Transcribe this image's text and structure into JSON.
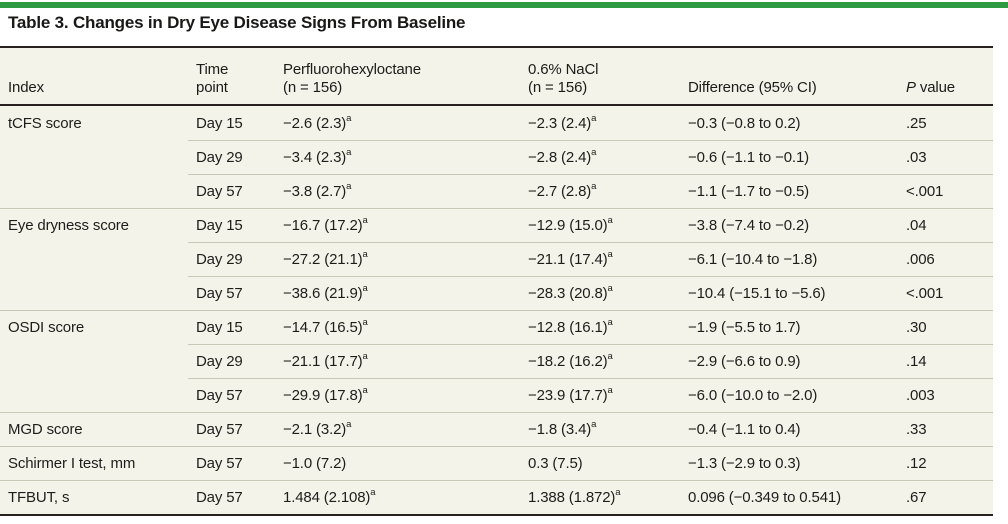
{
  "title": "Table 3. Changes in Dry Eye Disease Signs From Baseline",
  "colors": {
    "accent_green": "#2e9b43",
    "table_background": "#f4f3e9",
    "rule_dark": "#272220",
    "rule_light": "#c9c7b8",
    "text": "#1e1d1b"
  },
  "table": {
    "headers": {
      "index": "Index",
      "time_point": "Time\npoint",
      "drug": "Perfluorohexyloctane\n(n = 156)",
      "nacl": "0.6% NaCl\n(n = 156)",
      "difference": "Difference (95% CI)",
      "p_italic": "P",
      "p_rest": " value"
    },
    "rows": [
      {
        "index": "tCFS score",
        "time": "Day 15",
        "drug": "−2.6 (2.3)",
        "drug_sup": "a",
        "nacl": "−2.3 (2.4)",
        "nacl_sup": "a",
        "diff": "−0.3 (−0.8 to 0.2)",
        "p": ".25"
      },
      {
        "index": "",
        "time": "Day 29",
        "drug": "−3.4 (2.3)",
        "drug_sup": "a",
        "nacl": "−2.8 (2.4)",
        "nacl_sup": "a",
        "diff": "−0.6 (−1.1 to −0.1)",
        "p": ".03"
      },
      {
        "index": "",
        "time": "Day 57",
        "drug": "−3.8 (2.7)",
        "drug_sup": "a",
        "nacl": "−2.7 (2.8)",
        "nacl_sup": "a",
        "diff": "−1.1 (−1.7 to −0.5)",
        "p": "<.001"
      },
      {
        "index": "Eye dryness score",
        "time": "Day 15",
        "drug": "−16.7 (17.2)",
        "drug_sup": "a",
        "nacl": "−12.9 (15.0)",
        "nacl_sup": "a",
        "diff": "−3.8 (−7.4 to −0.2)",
        "p": ".04"
      },
      {
        "index": "",
        "time": "Day 29",
        "drug": "−27.2 (21.1)",
        "drug_sup": "a",
        "nacl": "−21.1 (17.4)",
        "nacl_sup": "a",
        "diff": "−6.1 (−10.4 to −1.8)",
        "p": ".006"
      },
      {
        "index": "",
        "time": "Day 57",
        "drug": "−38.6 (21.9)",
        "drug_sup": "a",
        "nacl": "−28.3 (20.8)",
        "nacl_sup": "a",
        "diff": "−10.4 (−15.1 to −5.6)",
        "p": "<.001"
      },
      {
        "index": "OSDI score",
        "time": "Day 15",
        "drug": "−14.7 (16.5)",
        "drug_sup": "a",
        "nacl": "−12.8 (16.1)",
        "nacl_sup": "a",
        "diff": "−1.9 (−5.5 to 1.7)",
        "p": ".30"
      },
      {
        "index": "",
        "time": "Day 29",
        "drug": "−21.1 (17.7)",
        "drug_sup": "a",
        "nacl": "−18.2 (16.2)",
        "nacl_sup": "a",
        "diff": "−2.9 (−6.6 to 0.9)",
        "p": ".14"
      },
      {
        "index": "",
        "time": "Day 57",
        "drug": "−29.9 (17.8)",
        "drug_sup": "a",
        "nacl": "−23.9 (17.7)",
        "nacl_sup": "a",
        "diff": "−6.0 (−10.0 to −2.0)",
        "p": ".003"
      },
      {
        "index": "MGD score",
        "time": "Day 57",
        "drug": "−2.1 (3.2)",
        "drug_sup": "a",
        "nacl": "−1.8 (3.4)",
        "nacl_sup": "a",
        "diff": "−0.4 (−1.1 to 0.4)",
        "p": ".33"
      },
      {
        "index": "Schirmer I test, mm",
        "time": "Day 57",
        "drug": "−1.0 (7.2)",
        "drug_sup": "",
        "nacl": "0.3 (7.5)",
        "nacl_sup": "",
        "diff": "−1.3 (−2.9 to 0.3)",
        "p": ".12"
      },
      {
        "index": "TFBUT, s",
        "time": "Day 57",
        "drug": "1.484 (2.108)",
        "drug_sup": "a",
        "nacl": "1.388 (1.872)",
        "nacl_sup": "a",
        "diff": "0.096 (−0.349 to 0.541)",
        "p": ".67"
      }
    ]
  }
}
